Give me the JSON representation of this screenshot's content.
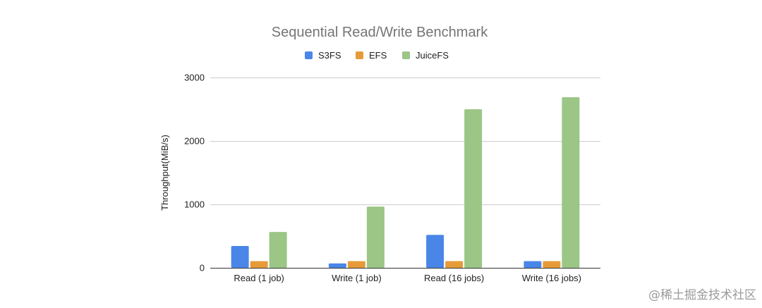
{
  "chart_data": {
    "type": "bar",
    "title": "Sequential Read/Write Benchmark",
    "xlabel": "",
    "ylabel": "Throughput(MiB/s)",
    "ylim": [
      0,
      3000
    ],
    "yticks": [
      0,
      1000,
      2000,
      3000
    ],
    "grid": true,
    "legend_position": "top",
    "categories": [
      "Read (1 job)",
      "Write (1 job)",
      "Read (16 jobs)",
      "Write (16 jobs)"
    ],
    "series": [
      {
        "name": "S3FS",
        "color": "#4a86e8",
        "values": [
          345,
          70,
          520,
          105
        ]
      },
      {
        "name": "EFS",
        "color": "#e69b38",
        "values": [
          105,
          105,
          105,
          105
        ]
      },
      {
        "name": "JuiceFS",
        "color": "#9bc686",
        "values": [
          565,
          965,
          2500,
          2690
        ]
      }
    ]
  },
  "watermark": "@稀土掘金技术社区"
}
